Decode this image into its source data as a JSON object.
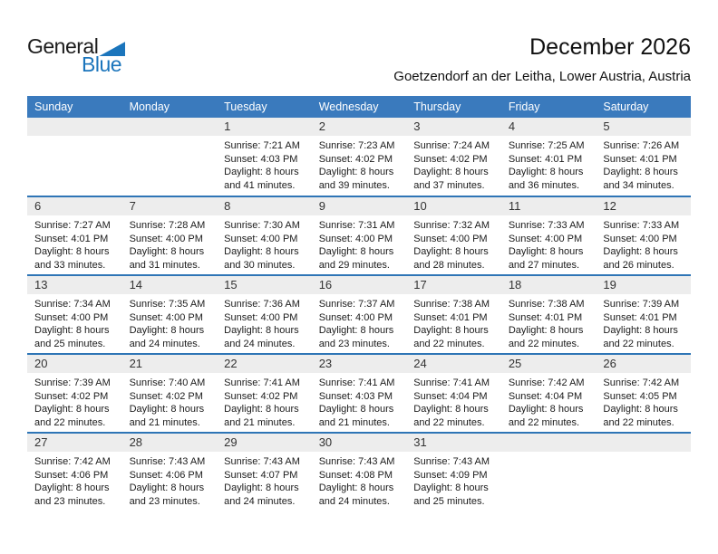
{
  "logo": {
    "part1": "General",
    "part2": "Blue"
  },
  "header": {
    "title": "December 2026",
    "subtitle": "Goetzendorf an der Leitha, Lower Austria, Austria"
  },
  "colors": {
    "header_bg": "#3a7abd",
    "week_divider": "#2e75b6",
    "day_band_bg": "#ededed",
    "logo_blue": "#1b75bc",
    "header_text": "#ffffff"
  },
  "calendar": {
    "day_headers": [
      "Sunday",
      "Monday",
      "Tuesday",
      "Wednesday",
      "Thursday",
      "Friday",
      "Saturday"
    ],
    "weeks": [
      [
        null,
        null,
        {
          "day": "1",
          "lines": [
            "Sunrise: 7:21 AM",
            "Sunset: 4:03 PM",
            "Daylight: 8 hours",
            "and 41 minutes."
          ]
        },
        {
          "day": "2",
          "lines": [
            "Sunrise: 7:23 AM",
            "Sunset: 4:02 PM",
            "Daylight: 8 hours",
            "and 39 minutes."
          ]
        },
        {
          "day": "3",
          "lines": [
            "Sunrise: 7:24 AM",
            "Sunset: 4:02 PM",
            "Daylight: 8 hours",
            "and 37 minutes."
          ]
        },
        {
          "day": "4",
          "lines": [
            "Sunrise: 7:25 AM",
            "Sunset: 4:01 PM",
            "Daylight: 8 hours",
            "and 36 minutes."
          ]
        },
        {
          "day": "5",
          "lines": [
            "Sunrise: 7:26 AM",
            "Sunset: 4:01 PM",
            "Daylight: 8 hours",
            "and 34 minutes."
          ]
        }
      ],
      [
        {
          "day": "6",
          "lines": [
            "Sunrise: 7:27 AM",
            "Sunset: 4:01 PM",
            "Daylight: 8 hours",
            "and 33 minutes."
          ]
        },
        {
          "day": "7",
          "lines": [
            "Sunrise: 7:28 AM",
            "Sunset: 4:00 PM",
            "Daylight: 8 hours",
            "and 31 minutes."
          ]
        },
        {
          "day": "8",
          "lines": [
            "Sunrise: 7:30 AM",
            "Sunset: 4:00 PM",
            "Daylight: 8 hours",
            "and 30 minutes."
          ]
        },
        {
          "day": "9",
          "lines": [
            "Sunrise: 7:31 AM",
            "Sunset: 4:00 PM",
            "Daylight: 8 hours",
            "and 29 minutes."
          ]
        },
        {
          "day": "10",
          "lines": [
            "Sunrise: 7:32 AM",
            "Sunset: 4:00 PM",
            "Daylight: 8 hours",
            "and 28 minutes."
          ]
        },
        {
          "day": "11",
          "lines": [
            "Sunrise: 7:33 AM",
            "Sunset: 4:00 PM",
            "Daylight: 8 hours",
            "and 27 minutes."
          ]
        },
        {
          "day": "12",
          "lines": [
            "Sunrise: 7:33 AM",
            "Sunset: 4:00 PM",
            "Daylight: 8 hours",
            "and 26 minutes."
          ]
        }
      ],
      [
        {
          "day": "13",
          "lines": [
            "Sunrise: 7:34 AM",
            "Sunset: 4:00 PM",
            "Daylight: 8 hours",
            "and 25 minutes."
          ]
        },
        {
          "day": "14",
          "lines": [
            "Sunrise: 7:35 AM",
            "Sunset: 4:00 PM",
            "Daylight: 8 hours",
            "and 24 minutes."
          ]
        },
        {
          "day": "15",
          "lines": [
            "Sunrise: 7:36 AM",
            "Sunset: 4:00 PM",
            "Daylight: 8 hours",
            "and 24 minutes."
          ]
        },
        {
          "day": "16",
          "lines": [
            "Sunrise: 7:37 AM",
            "Sunset: 4:00 PM",
            "Daylight: 8 hours",
            "and 23 minutes."
          ]
        },
        {
          "day": "17",
          "lines": [
            "Sunrise: 7:38 AM",
            "Sunset: 4:01 PM",
            "Daylight: 8 hours",
            "and 22 minutes."
          ]
        },
        {
          "day": "18",
          "lines": [
            "Sunrise: 7:38 AM",
            "Sunset: 4:01 PM",
            "Daylight: 8 hours",
            "and 22 minutes."
          ]
        },
        {
          "day": "19",
          "lines": [
            "Sunrise: 7:39 AM",
            "Sunset: 4:01 PM",
            "Daylight: 8 hours",
            "and 22 minutes."
          ]
        }
      ],
      [
        {
          "day": "20",
          "lines": [
            "Sunrise: 7:39 AM",
            "Sunset: 4:02 PM",
            "Daylight: 8 hours",
            "and 22 minutes."
          ]
        },
        {
          "day": "21",
          "lines": [
            "Sunrise: 7:40 AM",
            "Sunset: 4:02 PM",
            "Daylight: 8 hours",
            "and 21 minutes."
          ]
        },
        {
          "day": "22",
          "lines": [
            "Sunrise: 7:41 AM",
            "Sunset: 4:02 PM",
            "Daylight: 8 hours",
            "and 21 minutes."
          ]
        },
        {
          "day": "23",
          "lines": [
            "Sunrise: 7:41 AM",
            "Sunset: 4:03 PM",
            "Daylight: 8 hours",
            "and 21 minutes."
          ]
        },
        {
          "day": "24",
          "lines": [
            "Sunrise: 7:41 AM",
            "Sunset: 4:04 PM",
            "Daylight: 8 hours",
            "and 22 minutes."
          ]
        },
        {
          "day": "25",
          "lines": [
            "Sunrise: 7:42 AM",
            "Sunset: 4:04 PM",
            "Daylight: 8 hours",
            "and 22 minutes."
          ]
        },
        {
          "day": "26",
          "lines": [
            "Sunrise: 7:42 AM",
            "Sunset: 4:05 PM",
            "Daylight: 8 hours",
            "and 22 minutes."
          ]
        }
      ],
      [
        {
          "day": "27",
          "lines": [
            "Sunrise: 7:42 AM",
            "Sunset: 4:06 PM",
            "Daylight: 8 hours",
            "and 23 minutes."
          ]
        },
        {
          "day": "28",
          "lines": [
            "Sunrise: 7:43 AM",
            "Sunset: 4:06 PM",
            "Daylight: 8 hours",
            "and 23 minutes."
          ]
        },
        {
          "day": "29",
          "lines": [
            "Sunrise: 7:43 AM",
            "Sunset: 4:07 PM",
            "Daylight: 8 hours",
            "and 24 minutes."
          ]
        },
        {
          "day": "30",
          "lines": [
            "Sunrise: 7:43 AM",
            "Sunset: 4:08 PM",
            "Daylight: 8 hours",
            "and 24 minutes."
          ]
        },
        {
          "day": "31",
          "lines": [
            "Sunrise: 7:43 AM",
            "Sunset: 4:09 PM",
            "Daylight: 8 hours",
            "and 25 minutes."
          ]
        },
        null,
        null
      ]
    ]
  }
}
